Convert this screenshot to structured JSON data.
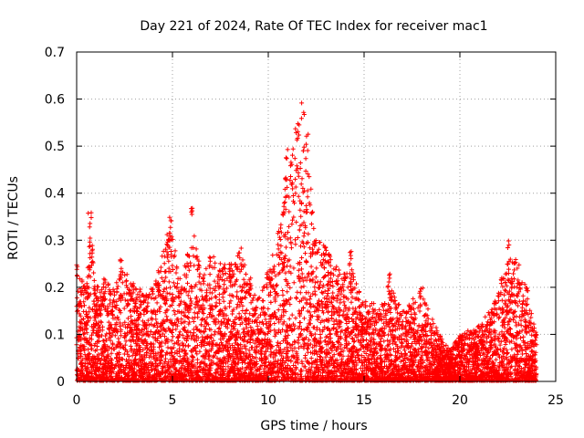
{
  "chart_data": {
    "type": "scatter",
    "title": "Day 221 of 2024, Rate Of TEC Index for receiver mac1",
    "xlabel": "GPS time / hours",
    "ylabel": "ROTI / TECUs",
    "xlim": [
      0,
      25
    ],
    "ylim": [
      0,
      0.7
    ],
    "xticks": [
      0,
      5,
      10,
      15,
      20,
      25
    ],
    "yticks": [
      0,
      0.1,
      0.2,
      0.3,
      0.4,
      0.5,
      0.6,
      0.7
    ],
    "ytick_labels": [
      "0",
      "0.1",
      "0.2",
      "0.3",
      "0.4",
      "0.5",
      "0.6",
      "0.7"
    ],
    "grid": true,
    "marker": "+",
    "series": [
      {
        "name": "ROTI",
        "color": "#ff0000",
        "x_range": [
          0,
          24
        ],
        "envelope": {
          "description": "upper envelope of dense cloud of ROTI points vs time",
          "hours": [
            0,
            0.5,
            0.7,
            1,
            1.5,
            2,
            2.3,
            3,
            4,
            4.9,
            5,
            5.5,
            6,
            6.5,
            7,
            8,
            8.5,
            9,
            9.5,
            10,
            10.5,
            11,
            11.5,
            11.8,
            12,
            12.5,
            13,
            14,
            14.3,
            15,
            16,
            16.3,
            17,
            18,
            19,
            19.5,
            20,
            21,
            22,
            22.5,
            23,
            23.5,
            24
          ],
          "roti": [
            0.25,
            0.2,
            0.37,
            0.2,
            0.22,
            0.2,
            0.26,
            0.21,
            0.2,
            0.36,
            0.32,
            0.2,
            0.37,
            0.23,
            0.27,
            0.25,
            0.29,
            0.22,
            0.18,
            0.24,
            0.32,
            0.5,
            0.55,
            0.6,
            0.53,
            0.3,
            0.3,
            0.23,
            0.28,
            0.17,
            0.17,
            0.23,
            0.15,
            0.2,
            0.1,
            0.07,
            0.1,
            0.12,
            0.19,
            0.3,
            0.26,
            0.2,
            0.1
          ]
        }
      }
    ]
  }
}
